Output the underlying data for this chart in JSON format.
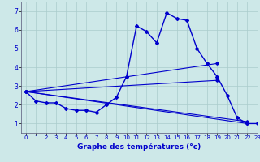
{
  "title": "Graphe des températures (°c)",
  "background_color": "#cde8e8",
  "grid_color": "#aacccc",
  "line_color": "#0000cc",
  "xlim": [
    -0.5,
    23
  ],
  "ylim": [
    0.5,
    7.5
  ],
  "xticks": [
    0,
    1,
    2,
    3,
    4,
    5,
    6,
    7,
    8,
    9,
    10,
    11,
    12,
    13,
    14,
    15,
    16,
    17,
    18,
    19,
    20,
    21,
    22,
    23
  ],
  "yticks": [
    1,
    2,
    3,
    4,
    5,
    6,
    7
  ],
  "line1_x": [
    0,
    1,
    2,
    3,
    4,
    5,
    6,
    7,
    8,
    9,
    10,
    11,
    12,
    13,
    14,
    15,
    16,
    17,
    18,
    19,
    20,
    21,
    22,
    23
  ],
  "line1_y": [
    2.7,
    2.2,
    2.1,
    2.1,
    1.8,
    1.7,
    1.7,
    1.6,
    2.0,
    2.4,
    3.5,
    6.2,
    5.9,
    5.3,
    6.9,
    6.6,
    6.5,
    5.0,
    4.2,
    3.5,
    2.5,
    1.3,
    1.0,
    1.0
  ],
  "line2_x": [
    0,
    19
  ],
  "line2_y": [
    2.7,
    4.2
  ],
  "line3_x": [
    0,
    19
  ],
  "line3_y": [
    2.7,
    3.3
  ],
  "line4_x": [
    0,
    22
  ],
  "line4_y": [
    2.7,
    1.1
  ],
  "line5_x": [
    0,
    22
  ],
  "line5_y": [
    2.7,
    1.0
  ]
}
